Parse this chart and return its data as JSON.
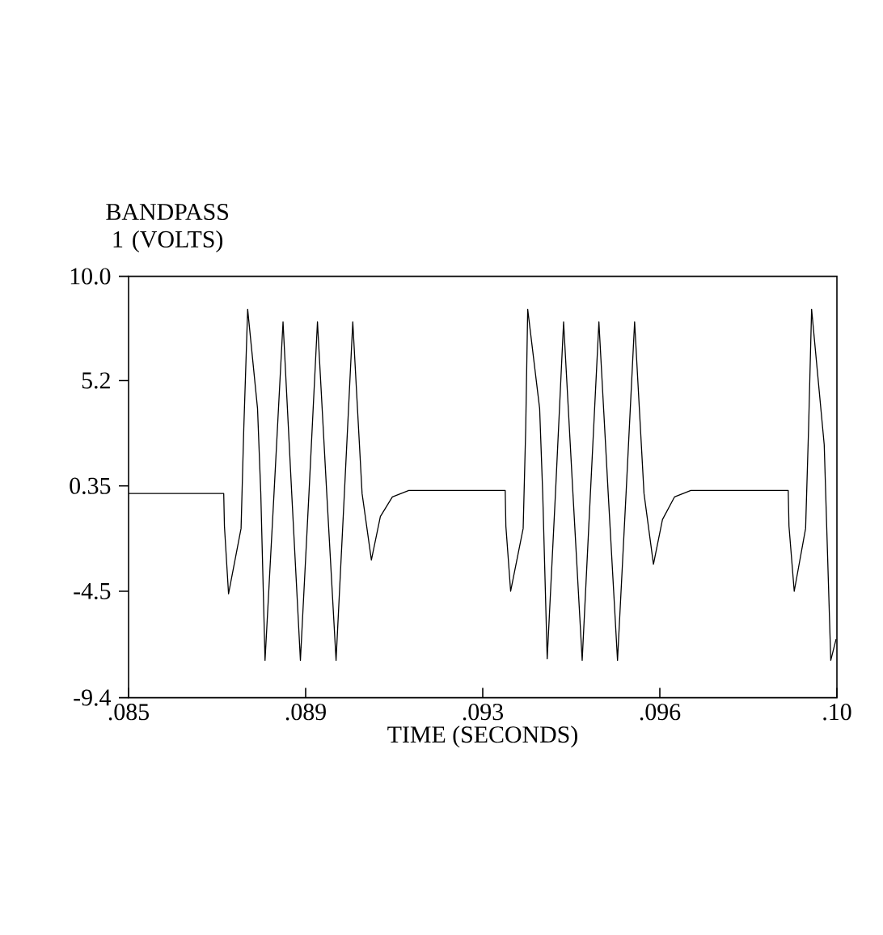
{
  "chart_data": {
    "type": "line",
    "ylabel": "BANDPASS 1 (VOLTS)",
    "xlabel": "TIME (SECONDS)",
    "x": [
      0.085,
      0.087015,
      0.08703,
      0.087117,
      0.087382,
      0.08744,
      0.087522,
      0.087731,
      0.0878,
      0.08789,
      0.08808,
      0.088271,
      0.088455,
      0.088639,
      0.08882,
      0.089,
      0.089197,
      0.089394,
      0.08957,
      0.089748,
      0.089945,
      0.090142,
      0.090332,
      0.090586,
      0.090935,
      0.092976,
      0.09299,
      0.093091,
      0.093356,
      0.09341,
      0.093452,
      0.093705,
      0.09377,
      0.093865,
      0.09404,
      0.094212,
      0.09441,
      0.094606,
      0.09478,
      0.09496,
      0.095157,
      0.095354,
      0.095535,
      0.095716,
      0.095915,
      0.096115,
      0.096306,
      0.09656,
      0.096907,
      0.098969,
      0.098985,
      0.099096,
      0.099337,
      0.0994,
      0.099464,
      0.099731,
      0.09987,
      0.099983
    ],
    "series": [
      {
        "color": "#000000",
        "values": [
          0.0,
          0.0,
          -1.5,
          -4.62,
          -1.61,
          3.0,
          8.48,
          3.91,
          0.0,
          -7.68,
          0.0,
          7.9,
          0.0,
          -7.68,
          0.0,
          7.9,
          0.0,
          -7.68,
          0.0,
          7.9,
          0.0,
          -3.06,
          -1.06,
          -0.16,
          0.14,
          0.14,
          -1.5,
          -4.5,
          -1.61,
          3.0,
          8.48,
          3.91,
          0.0,
          -7.61,
          0.0,
          7.9,
          0.0,
          -7.68,
          0.0,
          7.9,
          0.0,
          -7.68,
          0.0,
          7.9,
          0.0,
          -3.26,
          -1.2,
          -0.16,
          0.14,
          0.14,
          -1.5,
          -4.5,
          -1.61,
          3.0,
          8.48,
          2.25,
          -7.68,
          -6.7
        ]
      }
    ],
    "xlim": [
      0.085,
      0.1
    ],
    "ylim": [
      -9.4,
      10.0
    ],
    "xticks": [
      {
        "value": 0.085,
        "label": ".085"
      },
      {
        "value": 0.08875,
        "label": ".089"
      },
      {
        "value": 0.0925,
        "label": ".093"
      },
      {
        "value": 0.09625,
        "label": ".096"
      },
      {
        "value": 0.1,
        "label": ".10"
      }
    ],
    "yticks": [
      {
        "value": -9.4,
        "label": "-9.4"
      },
      {
        "value": -4.5,
        "label": "-4.5"
      },
      {
        "value": 0.35,
        "label": "0.35"
      },
      {
        "value": 5.2,
        "label": "5.2"
      },
      {
        "value": 10.0,
        "label": "10.0"
      }
    ],
    "marker": "none",
    "line_style": "solid"
  }
}
